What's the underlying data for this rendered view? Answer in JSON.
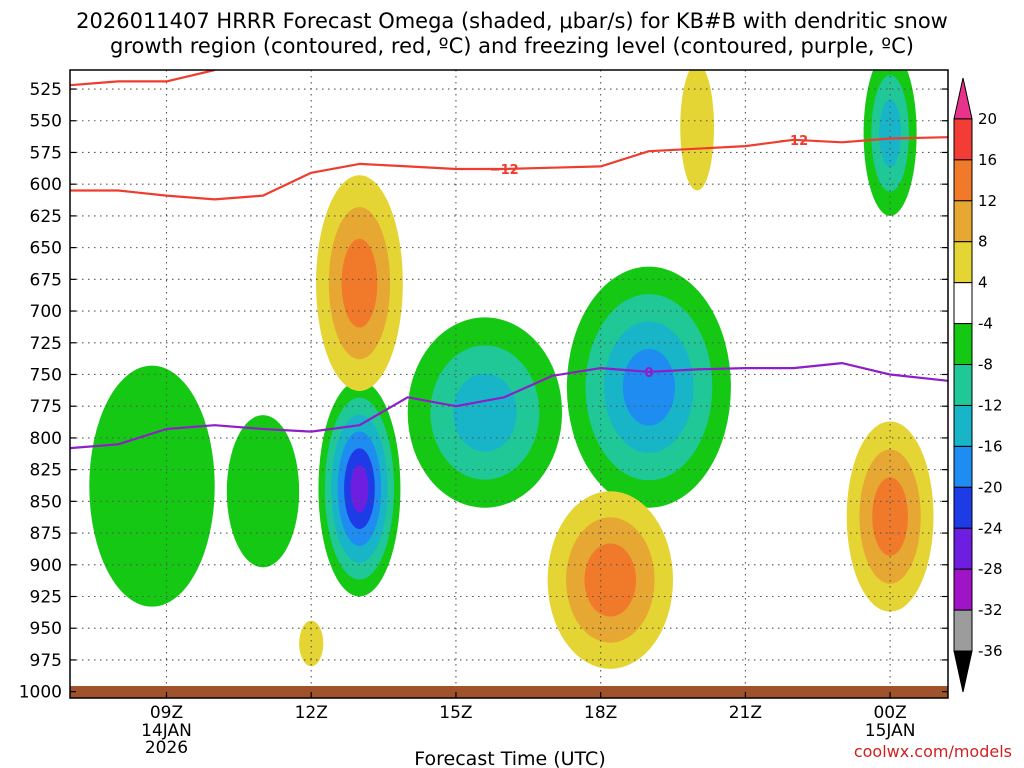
{
  "title": {
    "line1": "2026011407 HRRR Forecast Omega (shaded, μbar/s) for KB#B with dendritic snow",
    "line2": "growth region (contoured, red, ºC) and freezing level (contoured, purple, ºC)"
  },
  "credit": "coolwx.com/models",
  "colors": {
    "dgz": "#f03c2e",
    "freezing": "#8e1ec8",
    "ground": "#a0522d",
    "grid": "#555555"
  },
  "chart_data": {
    "type": "heatmap",
    "title": "2026011407 HRRR Forecast Omega (shaded, μbar/s) for KB#B with dendritic snow growth region (contoured, red, ºC) and freezing level (contoured, purple, ºC)",
    "xlabel": "Forecast Time (UTC)",
    "ylabel": "",
    "x_range_hours": [
      7.0,
      25.2
    ],
    "y_range_mb": [
      510,
      1005
    ],
    "y_ticks": [
      525,
      550,
      575,
      600,
      625,
      650,
      675,
      700,
      725,
      750,
      775,
      800,
      825,
      850,
      875,
      900,
      925,
      950,
      975,
      1000
    ],
    "x_ticks": [
      {
        "hour": 9,
        "label": "09Z",
        "sub1": "14JAN",
        "sub2": "2026"
      },
      {
        "hour": 12,
        "label": "12Z",
        "sub1": "",
        "sub2": ""
      },
      {
        "hour": 15,
        "label": "15Z",
        "sub1": "",
        "sub2": ""
      },
      {
        "hour": 18,
        "label": "18Z",
        "sub1": "",
        "sub2": ""
      },
      {
        "hour": 21,
        "label": "21Z",
        "sub1": "",
        "sub2": ""
      },
      {
        "hour": 24,
        "label": "00Z",
        "sub1": "15JAN",
        "sub2": ""
      }
    ],
    "colorbar": {
      "units": "μbar/s",
      "levels": [
        20,
        16,
        12,
        8,
        4,
        -4,
        -8,
        -12,
        -16,
        -20,
        -24,
        -28,
        -32,
        -36
      ],
      "colors": [
        "#e8338a",
        "#f23c35",
        "#f07a2a",
        "#e6a832",
        "#e5d534",
        "#ffffff",
        "#14c814",
        "#20c898",
        "#18b4c8",
        "#1e8cf0",
        "#1e3ce6",
        "#6e1ee0",
        "#a014c8",
        "#9c9c9c",
        "#000000"
      ]
    },
    "omega_features": [
      {
        "name": "rising-motion-0845Z",
        "center_hour": 8.7,
        "center_mb": 838,
        "max_abs": 4,
        "sign": "up"
      },
      {
        "name": "rising-motion-1100Z",
        "center_hour": 11.0,
        "center_mb": 842,
        "max_abs": 4,
        "sign": "up"
      },
      {
        "name": "rising-motion-1300Z",
        "center_hour": 13.0,
        "center_mb": 840,
        "max_abs": 24,
        "sign": "up"
      },
      {
        "name": "sinking-motion-1300Z",
        "center_hour": 13.0,
        "center_mb": 678,
        "max_abs": 12,
        "sign": "down"
      },
      {
        "name": "rising-motion-1530Z",
        "center_hour": 15.6,
        "center_mb": 780,
        "max_abs": 12,
        "sign": "up"
      },
      {
        "name": "rising-motion-1900Z",
        "center_hour": 19.0,
        "center_mb": 760,
        "max_abs": 16,
        "sign": "up"
      },
      {
        "name": "sinking-motion-1815Z",
        "center_hour": 18.2,
        "center_mb": 912,
        "max_abs": 12,
        "sign": "down"
      },
      {
        "name": "sinking-motion-1900Z-aloft",
        "center_hour": 20.0,
        "center_mb": 555,
        "max_abs": 4,
        "sign": "down"
      },
      {
        "name": "rising-motion-2400Z-aloft",
        "center_hour": 24.0,
        "center_mb": 560,
        "max_abs": 12,
        "sign": "up"
      },
      {
        "name": "sinking-motion-2400Z",
        "center_hour": 24.0,
        "center_mb": 862,
        "max_abs": 12,
        "sign": "down"
      },
      {
        "name": "sinking-motion-1200Z-low",
        "center_hour": 12.0,
        "center_mb": 962,
        "max_abs": 4,
        "sign": "down"
      }
    ],
    "series": [
      {
        "name": "dendritic growth -12C (lower)",
        "label": "−12",
        "hours": [
          7.0,
          8.0,
          9.0,
          10.0,
          11.0,
          12.0,
          13.0,
          14.0,
          15.0,
          16.0,
          17.0,
          18.0,
          19.0,
          20.0,
          21.0,
          22.0,
          23.0,
          24.0,
          25.2
        ],
        "mb": [
          605,
          605,
          609,
          612,
          609,
          591,
          584,
          586,
          588,
          588,
          587,
          586,
          574,
          572,
          570,
          565,
          567,
          564,
          563
        ]
      },
      {
        "name": "dendritic growth -12C (upper)",
        "label": "",
        "hours": [
          7.0,
          8.0,
          9.0,
          10.0
        ],
        "mb": [
          522,
          519,
          519,
          510
        ]
      },
      {
        "name": "freezing level 0C",
        "label": "0",
        "hours": [
          7.0,
          8.0,
          9.0,
          10.0,
          11.0,
          12.0,
          13.0,
          14.0,
          15.0,
          16.0,
          17.0,
          18.0,
          19.0,
          20.0,
          21.0,
          22.0,
          23.0,
          24.0,
          25.2
        ],
        "mb": [
          808,
          805,
          793,
          790,
          793,
          795,
          790,
          768,
          775,
          768,
          751,
          745,
          748,
          746,
          745,
          745,
          741,
          750,
          755
        ]
      }
    ]
  }
}
